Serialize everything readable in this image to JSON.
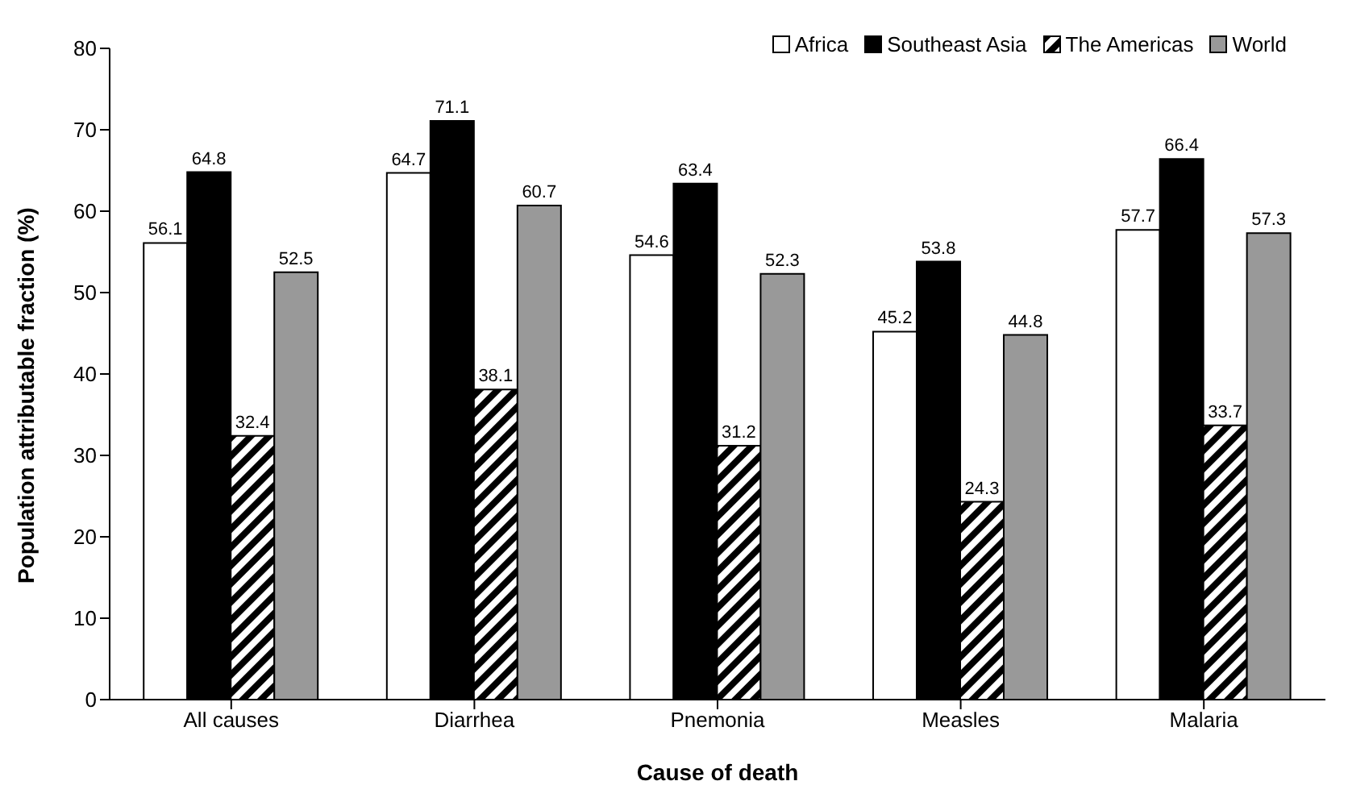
{
  "chart_data": {
    "type": "bar",
    "xlabel": "Cause of death",
    "ylabel": "Population attributable fraction (%)",
    "categories": [
      "All causes",
      "Diarrhea",
      "Pnemonia",
      "Measles",
      "Malaria"
    ],
    "series": [
      {
        "name": "Africa",
        "color": "#ffffff",
        "values": [
          56.1,
          64.7,
          54.6,
          45.2,
          57.7
        ]
      },
      {
        "name": "Southeast Asia",
        "color": "#000000",
        "values": [
          64.8,
          71.1,
          63.4,
          53.8,
          66.4
        ]
      },
      {
        "name": "The Americas",
        "color": "#000000",
        "values": [
          32.4,
          38.1,
          31.2,
          24.3,
          33.7
        ]
      },
      {
        "name": "World",
        "color": "#999999",
        "values": [
          52.5,
          60.7,
          52.3,
          44.8,
          57.3
        ]
      }
    ],
    "ylim": [
      0,
      80
    ],
    "yticks": [
      0,
      10,
      20,
      30,
      40,
      50,
      60,
      70,
      80
    ],
    "grid": false,
    "legend": "top right",
    "data_labels": true
  }
}
